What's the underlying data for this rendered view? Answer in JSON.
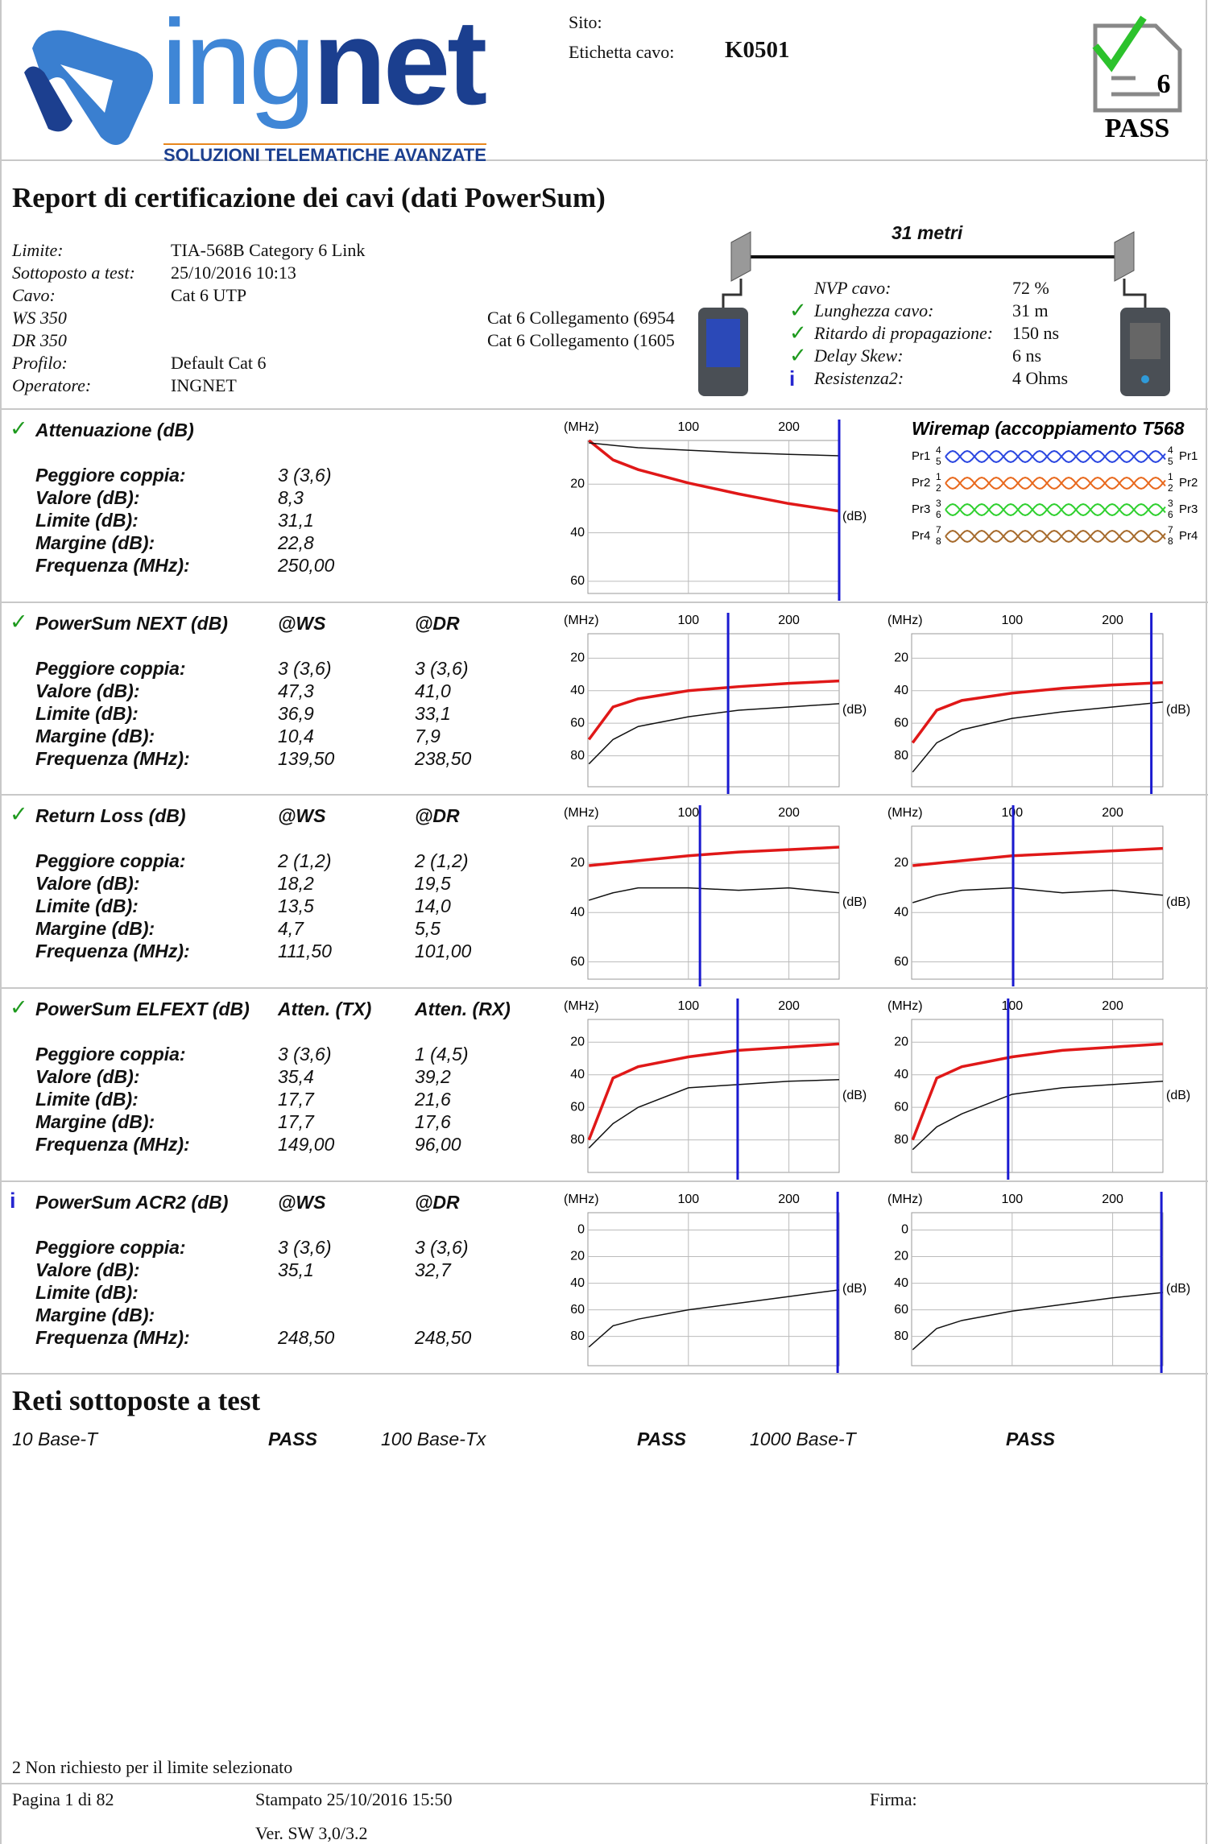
{
  "header": {
    "logo": {
      "part1": "ing",
      "part2": "net",
      "tagline": "SOLUZIONI TELEMATICHE AVANZATE"
    },
    "site_label": "Sito:",
    "cable_label": "Etichetta cavo:",
    "cable_id": "K0501",
    "badge_number": "6",
    "status": "PASS"
  },
  "title": "Report di certificazione dei cavi (dati PowerSum)",
  "info": [
    {
      "label": "Limite:",
      "value": "TIA-568B Category 6 Link"
    },
    {
      "label": "Sottoposto a test:",
      "value": "25/10/2016 10:13"
    },
    {
      "label": "Cavo:",
      "value": "Cat 6 UTP"
    },
    {
      "label": "WS 350",
      "note": "Cat 6 Collegamento (6954"
    },
    {
      "label": "DR 350",
      "note": "Cat 6 Collegamento (1605"
    },
    {
      "label": "Profilo:",
      "value": "Default Cat 6"
    },
    {
      "label": "Operatore:",
      "value": "INGNET"
    }
  ],
  "link": {
    "length": "31 metri",
    "params": [
      {
        "label": "NVP cavo:",
        "value": "72 %"
      },
      {
        "icon": "✓",
        "label": "Lunghezza cavo:",
        "value": "31 m"
      },
      {
        "icon": "✓",
        "label": "Ritardo di propagazione:",
        "value": "150 ns"
      },
      {
        "icon": "✓",
        "label": "Delay Skew:",
        "value": "6 ns"
      },
      {
        "icon": "i",
        "label": "Resistenza2:",
        "value": "4 Ohms"
      }
    ]
  },
  "wiremap": {
    "title": "Wiremap (accoppiamento T568",
    "pairs": [
      {
        "name": "Pr1",
        "pins": [
          "4",
          "5"
        ],
        "color": "#2a46e0"
      },
      {
        "name": "Pr2",
        "pins": [
          "1",
          "2"
        ],
        "color": "#e8681c"
      },
      {
        "name": "Pr3",
        "pins": [
          "3",
          "6"
        ],
        "color": "#2fd02f"
      },
      {
        "name": "Pr4",
        "pins": [
          "7",
          "8"
        ],
        "color": "#a66a2c"
      }
    ]
  },
  "sections": [
    {
      "icon": "✓",
      "title": "Attenuazione (dB)",
      "columns": [],
      "rows": [
        {
          "label": "Peggiore coppia:",
          "values": [
            "3 (3,6)"
          ]
        },
        {
          "label": "Valore (dB):",
          "values": [
            "8,3"
          ]
        },
        {
          "label": "Limite (dB):",
          "values": [
            "31,1"
          ]
        },
        {
          "label": "Margine (dB):",
          "values": [
            "22,8"
          ]
        },
        {
          "label": "Frequenza (MHz):",
          "values": [
            "250,00"
          ]
        }
      ],
      "charts": [
        {
          "x_label": "(MHz)",
          "y_label": "(dB)",
          "xlim": [
            0,
            250
          ],
          "xticks": [
            100,
            200
          ],
          "ylim": [
            2,
            65
          ],
          "yticks": [
            20,
            40,
            60
          ],
          "x": [
            1,
            25,
            50,
            100,
            150,
            200,
            250
          ],
          "series": [
            {
              "color": "#e01818",
              "values": [
                2,
                10,
                14,
                19.5,
                24,
                28,
                31.1
              ]
            },
            {
              "color": "#111111",
              "values": [
                3,
                4,
                5,
                6,
                7,
                7.7,
                8.3
              ]
            }
          ],
          "marker": 250
        }
      ]
    },
    {
      "icon": "✓",
      "title": "PowerSum NEXT (dB)",
      "columns": [
        "@WS",
        "@DR"
      ],
      "rows": [
        {
          "label": "Peggiore coppia:",
          "values": [
            "3 (3,6)",
            "3 (3,6)"
          ]
        },
        {
          "label": "Valore (dB):",
          "values": [
            "47,3",
            "41,0"
          ]
        },
        {
          "label": "Limite (dB):",
          "values": [
            "36,9",
            "33,1"
          ]
        },
        {
          "label": "Margine (dB):",
          "values": [
            "10,4",
            "7,9"
          ]
        },
        {
          "label": "Frequenza (MHz):",
          "values": [
            "139,50",
            "238,50"
          ]
        }
      ],
      "charts": [
        {
          "x_label": "(MHz)",
          "y_label": "(dB)",
          "xlim": [
            0,
            250
          ],
          "xticks": [
            100,
            200
          ],
          "ylim": [
            5,
            99
          ],
          "yticks": [
            20,
            40,
            60,
            80
          ],
          "x": [
            1,
            25,
            50,
            100,
            150,
            200,
            250
          ],
          "series": [
            {
              "color": "#e01818",
              "values": [
                70,
                50,
                45,
                40,
                37.5,
                35.5,
                34
              ]
            },
            {
              "color": "#111111",
              "values": [
                85,
                70,
                62,
                56,
                52,
                50,
                48
              ]
            }
          ],
          "marker": 139.5
        },
        {
          "x_label": "(MHz)",
          "y_label": "(dB)",
          "xlim": [
            0,
            250
          ],
          "xticks": [
            100,
            200
          ],
          "ylim": [
            5,
            99
          ],
          "yticks": [
            20,
            40,
            60,
            80
          ],
          "x": [
            1,
            25,
            50,
            100,
            150,
            200,
            250
          ],
          "series": [
            {
              "color": "#e01818",
              "values": [
                72,
                52,
                46,
                41.5,
                38.5,
                36.5,
                35
              ]
            },
            {
              "color": "#111111",
              "values": [
                90,
                72,
                64,
                57,
                53,
                50,
                47
              ]
            }
          ],
          "marker": 238.5
        }
      ]
    },
    {
      "icon": "✓",
      "title": "Return Loss (dB)",
      "columns": [
        "@WS",
        "@DR"
      ],
      "rows": [
        {
          "label": "Peggiore coppia:",
          "values": [
            "2 (1,2)",
            "2 (1,2)"
          ]
        },
        {
          "label": "Valore (dB):",
          "values": [
            "18,2",
            "19,5"
          ]
        },
        {
          "label": "Limite (dB):",
          "values": [
            "13,5",
            "14,0"
          ]
        },
        {
          "label": "Margine (dB):",
          "values": [
            "4,7",
            "5,5"
          ]
        },
        {
          "label": "Frequenza (MHz):",
          "values": [
            "111,50",
            "101,00"
          ]
        }
      ],
      "charts": [
        {
          "x_label": "(MHz)",
          "y_label": "(dB)",
          "xlim": [
            0,
            250
          ],
          "xticks": [
            100,
            200
          ],
          "ylim": [
            5,
            67
          ],
          "yticks": [
            20,
            40,
            60
          ],
          "x": [
            1,
            25,
            50,
            100,
            150,
            200,
            250
          ],
          "series": [
            {
              "color": "#e01818",
              "values": [
                21,
                20,
                19,
                17,
                15.5,
                14.5,
                13.5
              ]
            },
            {
              "color": "#111111",
              "values": [
                35,
                32,
                30,
                30,
                31,
                30,
                32
              ]
            }
          ],
          "marker": 111.5
        },
        {
          "x_label": "(MHz)",
          "y_label": "(dB)",
          "xlim": [
            0,
            250
          ],
          "xticks": [
            100,
            200
          ],
          "ylim": [
            5,
            67
          ],
          "yticks": [
            20,
            40,
            60
          ],
          "x": [
            1,
            25,
            50,
            100,
            150,
            200,
            250
          ],
          "series": [
            {
              "color": "#e01818",
              "values": [
                21,
                20,
                19,
                17,
                16,
                15,
                14
              ]
            },
            {
              "color": "#111111",
              "values": [
                36,
                33,
                31,
                30,
                32,
                31,
                33
              ]
            }
          ],
          "marker": 101
        }
      ]
    },
    {
      "icon": "✓",
      "title": "PowerSum ELFEXT (dB)",
      "columns": [
        "Atten. (TX)",
        "Atten. (RX)"
      ],
      "rows": [
        {
          "label": "Peggiore coppia:",
          "values": [
            "3 (3,6)",
            "1 (4,5)"
          ]
        },
        {
          "label": "Valore (dB):",
          "values": [
            "35,4",
            "39,2"
          ]
        },
        {
          "label": "Limite (dB):",
          "values": [
            "17,7",
            "21,6"
          ]
        },
        {
          "label": "Margine (dB):",
          "values": [
            "17,7",
            "17,6"
          ]
        },
        {
          "label": "Frequenza (MHz):",
          "values": [
            "149,00",
            "96,00"
          ]
        }
      ],
      "charts": [
        {
          "x_label": "(MHz)",
          "y_label": "(dB)",
          "xlim": [
            0,
            250
          ],
          "xticks": [
            100,
            200
          ],
          "ylim": [
            6,
            100
          ],
          "yticks": [
            20,
            40,
            60,
            80
          ],
          "x": [
            1,
            25,
            50,
            100,
            150,
            200,
            250
          ],
          "series": [
            {
              "color": "#e01818",
              "values": [
                80,
                42,
                35,
                29,
                25,
                23,
                21
              ]
            },
            {
              "color": "#111111",
              "values": [
                85,
                70,
                60,
                48,
                46,
                44,
                43
              ]
            }
          ],
          "marker": 149
        },
        {
          "x_label": "(MHz)",
          "y_label": "(dB)",
          "xlim": [
            0,
            250
          ],
          "xticks": [
            100,
            200
          ],
          "ylim": [
            6,
            100
          ],
          "yticks": [
            20,
            40,
            60,
            80
          ],
          "x": [
            1,
            25,
            50,
            100,
            150,
            200,
            250
          ],
          "series": [
            {
              "color": "#e01818",
              "values": [
                80,
                42,
                35,
                29,
                25,
                23,
                21
              ]
            },
            {
              "color": "#111111",
              "values": [
                86,
                72,
                64,
                52,
                48,
                46,
                44
              ]
            }
          ],
          "marker": 96
        }
      ]
    },
    {
      "icon": "i",
      "title": "PowerSum ACR2 (dB)",
      "columns": [
        "@WS",
        "@DR"
      ],
      "rows": [
        {
          "label": "Peggiore coppia:",
          "values": [
            "3 (3,6)",
            "3 (3,6)"
          ]
        },
        {
          "label": "Valore (dB):",
          "values": [
            "35,1",
            "32,7"
          ]
        },
        {
          "label": "Limite (dB):",
          "values": []
        },
        {
          "label": "Margine (dB):",
          "values": []
        },
        {
          "label": "Frequenza (MHz):",
          "values": [
            "248,50",
            "248,50"
          ]
        }
      ],
      "charts": [
        {
          "x_label": "(MHz)",
          "y_label": "(dB)",
          "xlim": [
            0,
            250
          ],
          "xticks": [
            100,
            200
          ],
          "ylim": [
            -13,
            102
          ],
          "yticks": [
            0,
            20,
            40,
            60,
            80
          ],
          "x": [
            1,
            25,
            50,
            100,
            150,
            200,
            250
          ],
          "series": [
            {
              "color": "#111111",
              "values": [
                88,
                72,
                67,
                60,
                55,
                50,
                45
              ]
            }
          ],
          "marker": 248.5
        },
        {
          "x_label": "(MHz)",
          "y_label": "(dB)",
          "xlim": [
            0,
            250
          ],
          "xticks": [
            100,
            200
          ],
          "ylim": [
            -13,
            102
          ],
          "yticks": [
            0,
            20,
            40,
            60,
            80
          ],
          "x": [
            1,
            25,
            50,
            100,
            150,
            200,
            250
          ],
          "series": [
            {
              "color": "#111111",
              "values": [
                90,
                74,
                68,
                61,
                56,
                51,
                47
              ]
            }
          ],
          "marker": 248.5
        }
      ]
    }
  ],
  "networks": {
    "title": "Reti sottoposte a test",
    "items": [
      {
        "name": "10 Base-T",
        "result": "PASS"
      },
      {
        "name": "100 Base-Tx",
        "result": "PASS"
      },
      {
        "name": "1000 Base-T",
        "result": "PASS"
      }
    ]
  },
  "footer": {
    "note": "2 Non richiesto per il limite selezionato",
    "page": "Pagina 1 di 82",
    "printed": "Stampato 25/10/2016 15:50",
    "signature": "Firma:",
    "version": "Ver. SW 3,0/3.2"
  }
}
